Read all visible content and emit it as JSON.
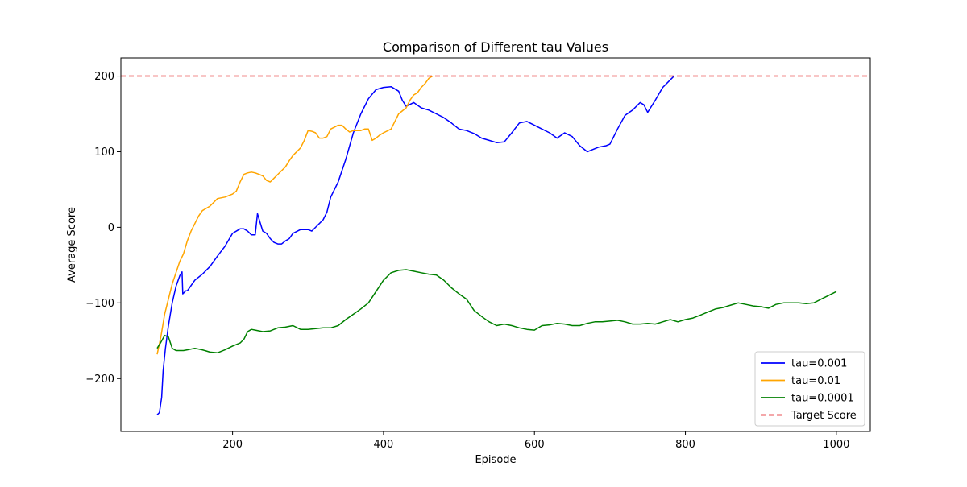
{
  "chart_data": {
    "type": "line",
    "title": "Comparison of Different tau Values",
    "xlabel": "Episode",
    "ylabel": "Average Score",
    "xlim": [
      52,
      1045
    ],
    "ylim": [
      -270,
      224
    ],
    "xticks": [
      200,
      400,
      600,
      800,
      1000
    ],
    "yticks": [
      -200,
      -100,
      0,
      100,
      200
    ],
    "grid": false,
    "legend_position": "lower-right",
    "reference_line": {
      "name": "Target Score",
      "y": 200,
      "color": "#e41a1c",
      "style": "dashed"
    },
    "series": [
      {
        "name": "tau=0.001",
        "color": "#0000ff",
        "points": [
          [
            100,
            -248
          ],
          [
            103,
            -245
          ],
          [
            106,
            -225
          ],
          [
            108,
            -190
          ],
          [
            111,
            -160
          ],
          [
            115,
            -130
          ],
          [
            120,
            -100
          ],
          [
            125,
            -78
          ],
          [
            130,
            -64
          ],
          [
            133,
            -59
          ],
          [
            134,
            -88
          ],
          [
            138,
            -84
          ],
          [
            140,
            -84
          ],
          [
            143,
            -80
          ],
          [
            145,
            -77
          ],
          [
            150,
            -70
          ],
          [
            160,
            -62
          ],
          [
            170,
            -52
          ],
          [
            180,
            -38
          ],
          [
            190,
            -25
          ],
          [
            200,
            -8
          ],
          [
            210,
            -2
          ],
          [
            215,
            -2
          ],
          [
            220,
            -5
          ],
          [
            225,
            -10
          ],
          [
            230,
            -10
          ],
          [
            233,
            18
          ],
          [
            236,
            8
          ],
          [
            240,
            -5
          ],
          [
            245,
            -8
          ],
          [
            250,
            -15
          ],
          [
            255,
            -20
          ],
          [
            260,
            -22
          ],
          [
            265,
            -22
          ],
          [
            270,
            -18
          ],
          [
            275,
            -15
          ],
          [
            280,
            -8
          ],
          [
            290,
            -3
          ],
          [
            300,
            -3
          ],
          [
            305,
            -5
          ],
          [
            310,
            0
          ],
          [
            320,
            10
          ],
          [
            325,
            20
          ],
          [
            330,
            40
          ],
          [
            340,
            60
          ],
          [
            350,
            90
          ],
          [
            360,
            125
          ],
          [
            370,
            150
          ],
          [
            380,
            170
          ],
          [
            390,
            182
          ],
          [
            400,
            185
          ],
          [
            410,
            186
          ],
          [
            420,
            180
          ],
          [
            425,
            168
          ],
          [
            430,
            160
          ],
          [
            440,
            165
          ],
          [
            450,
            158
          ],
          [
            460,
            155
          ],
          [
            470,
            150
          ],
          [
            480,
            145
          ],
          [
            490,
            138
          ],
          [
            500,
            130
          ],
          [
            510,
            128
          ],
          [
            520,
            124
          ],
          [
            530,
            118
          ],
          [
            540,
            115
          ],
          [
            550,
            112
          ],
          [
            560,
            113
          ],
          [
            570,
            125
          ],
          [
            580,
            138
          ],
          [
            590,
            140
          ],
          [
            600,
            135
          ],
          [
            610,
            130
          ],
          [
            620,
            125
          ],
          [
            630,
            118
          ],
          [
            640,
            125
          ],
          [
            650,
            120
          ],
          [
            660,
            108
          ],
          [
            670,
            100
          ],
          [
            675,
            102
          ],
          [
            685,
            106
          ],
          [
            695,
            108
          ],
          [
            700,
            110
          ],
          [
            710,
            130
          ],
          [
            720,
            148
          ],
          [
            730,
            155
          ],
          [
            740,
            165
          ],
          [
            745,
            162
          ],
          [
            750,
            152
          ],
          [
            760,
            168
          ],
          [
            770,
            185
          ],
          [
            780,
            195
          ],
          [
            785,
            200
          ]
        ]
      },
      {
        "name": "tau=0.01",
        "color": "#ffa500",
        "points": [
          [
            100,
            -168
          ],
          [
            105,
            -145
          ],
          [
            110,
            -115
          ],
          [
            115,
            -95
          ],
          [
            120,
            -75
          ],
          [
            125,
            -60
          ],
          [
            130,
            -45
          ],
          [
            135,
            -35
          ],
          [
            140,
            -18
          ],
          [
            145,
            -5
          ],
          [
            150,
            5
          ],
          [
            155,
            15
          ],
          [
            160,
            22
          ],
          [
            170,
            28
          ],
          [
            180,
            38
          ],
          [
            190,
            40
          ],
          [
            200,
            44
          ],
          [
            205,
            48
          ],
          [
            210,
            60
          ],
          [
            215,
            70
          ],
          [
            220,
            72
          ],
          [
            225,
            73
          ],
          [
            230,
            72
          ],
          [
            235,
            70
          ],
          [
            240,
            68
          ],
          [
            245,
            62
          ],
          [
            250,
            60
          ],
          [
            255,
            65
          ],
          [
            260,
            70
          ],
          [
            265,
            75
          ],
          [
            270,
            80
          ],
          [
            275,
            88
          ],
          [
            280,
            95
          ],
          [
            290,
            105
          ],
          [
            295,
            115
          ],
          [
            300,
            128
          ],
          [
            305,
            127
          ],
          [
            310,
            125
          ],
          [
            315,
            118
          ],
          [
            320,
            118
          ],
          [
            325,
            120
          ],
          [
            330,
            130
          ],
          [
            340,
            135
          ],
          [
            345,
            135
          ],
          [
            350,
            130
          ],
          [
            355,
            126
          ],
          [
            360,
            128
          ],
          [
            370,
            128
          ],
          [
            375,
            130
          ],
          [
            380,
            130
          ],
          [
            385,
            115
          ],
          [
            390,
            118
          ],
          [
            395,
            122
          ],
          [
            400,
            125
          ],
          [
            410,
            130
          ],
          [
            415,
            140
          ],
          [
            420,
            150
          ],
          [
            430,
            158
          ],
          [
            435,
            168
          ],
          [
            440,
            175
          ],
          [
            445,
            178
          ],
          [
            450,
            185
          ],
          [
            455,
            190
          ],
          [
            460,
            197
          ],
          [
            465,
            200
          ]
        ]
      },
      {
        "name": "tau=0.0001",
        "color": "#008000",
        "points": [
          [
            100,
            -160
          ],
          [
            105,
            -152
          ],
          [
            110,
            -143
          ],
          [
            115,
            -145
          ],
          [
            120,
            -160
          ],
          [
            125,
            -163
          ],
          [
            135,
            -163
          ],
          [
            140,
            -162
          ],
          [
            150,
            -160
          ],
          [
            160,
            -162
          ],
          [
            170,
            -165
          ],
          [
            180,
            -166
          ],
          [
            190,
            -162
          ],
          [
            200,
            -157
          ],
          [
            210,
            -153
          ],
          [
            215,
            -148
          ],
          [
            220,
            -138
          ],
          [
            225,
            -135
          ],
          [
            230,
            -136
          ],
          [
            240,
            -138
          ],
          [
            250,
            -137
          ],
          [
            255,
            -135
          ],
          [
            260,
            -133
          ],
          [
            270,
            -132
          ],
          [
            280,
            -130
          ],
          [
            290,
            -135
          ],
          [
            300,
            -135
          ],
          [
            310,
            -134
          ],
          [
            320,
            -133
          ],
          [
            330,
            -133
          ],
          [
            340,
            -130
          ],
          [
            350,
            -122
          ],
          [
            360,
            -115
          ],
          [
            370,
            -108
          ],
          [
            380,
            -100
          ],
          [
            390,
            -85
          ],
          [
            400,
            -70
          ],
          [
            410,
            -60
          ],
          [
            420,
            -57
          ],
          [
            430,
            -56
          ],
          [
            440,
            -58
          ],
          [
            450,
            -60
          ],
          [
            460,
            -62
          ],
          [
            470,
            -63
          ],
          [
            480,
            -70
          ],
          [
            490,
            -80
          ],
          [
            500,
            -88
          ],
          [
            510,
            -95
          ],
          [
            520,
            -110
          ],
          [
            530,
            -118
          ],
          [
            540,
            -125
          ],
          [
            550,
            -130
          ],
          [
            560,
            -128
          ],
          [
            570,
            -130
          ],
          [
            580,
            -133
          ],
          [
            590,
            -135
          ],
          [
            600,
            -136
          ],
          [
            610,
            -130
          ],
          [
            620,
            -129
          ],
          [
            630,
            -127
          ],
          [
            640,
            -128
          ],
          [
            650,
            -130
          ],
          [
            660,
            -130
          ],
          [
            670,
            -127
          ],
          [
            680,
            -125
          ],
          [
            690,
            -125
          ],
          [
            700,
            -124
          ],
          [
            710,
            -123
          ],
          [
            720,
            -125
          ],
          [
            730,
            -128
          ],
          [
            740,
            -128
          ],
          [
            750,
            -127
          ],
          [
            760,
            -128
          ],
          [
            770,
            -125
          ],
          [
            780,
            -122
          ],
          [
            790,
            -125
          ],
          [
            800,
            -122
          ],
          [
            810,
            -120
          ],
          [
            820,
            -116
          ],
          [
            830,
            -112
          ],
          [
            840,
            -108
          ],
          [
            850,
            -106
          ],
          [
            860,
            -103
          ],
          [
            870,
            -100
          ],
          [
            880,
            -102
          ],
          [
            890,
            -104
          ],
          [
            900,
            -105
          ],
          [
            910,
            -107
          ],
          [
            920,
            -102
          ],
          [
            930,
            -100
          ],
          [
            940,
            -100
          ],
          [
            950,
            -100
          ],
          [
            960,
            -101
          ],
          [
            970,
            -100
          ],
          [
            980,
            -95
          ],
          [
            990,
            -90
          ],
          [
            1000,
            -85
          ]
        ]
      }
    ]
  }
}
